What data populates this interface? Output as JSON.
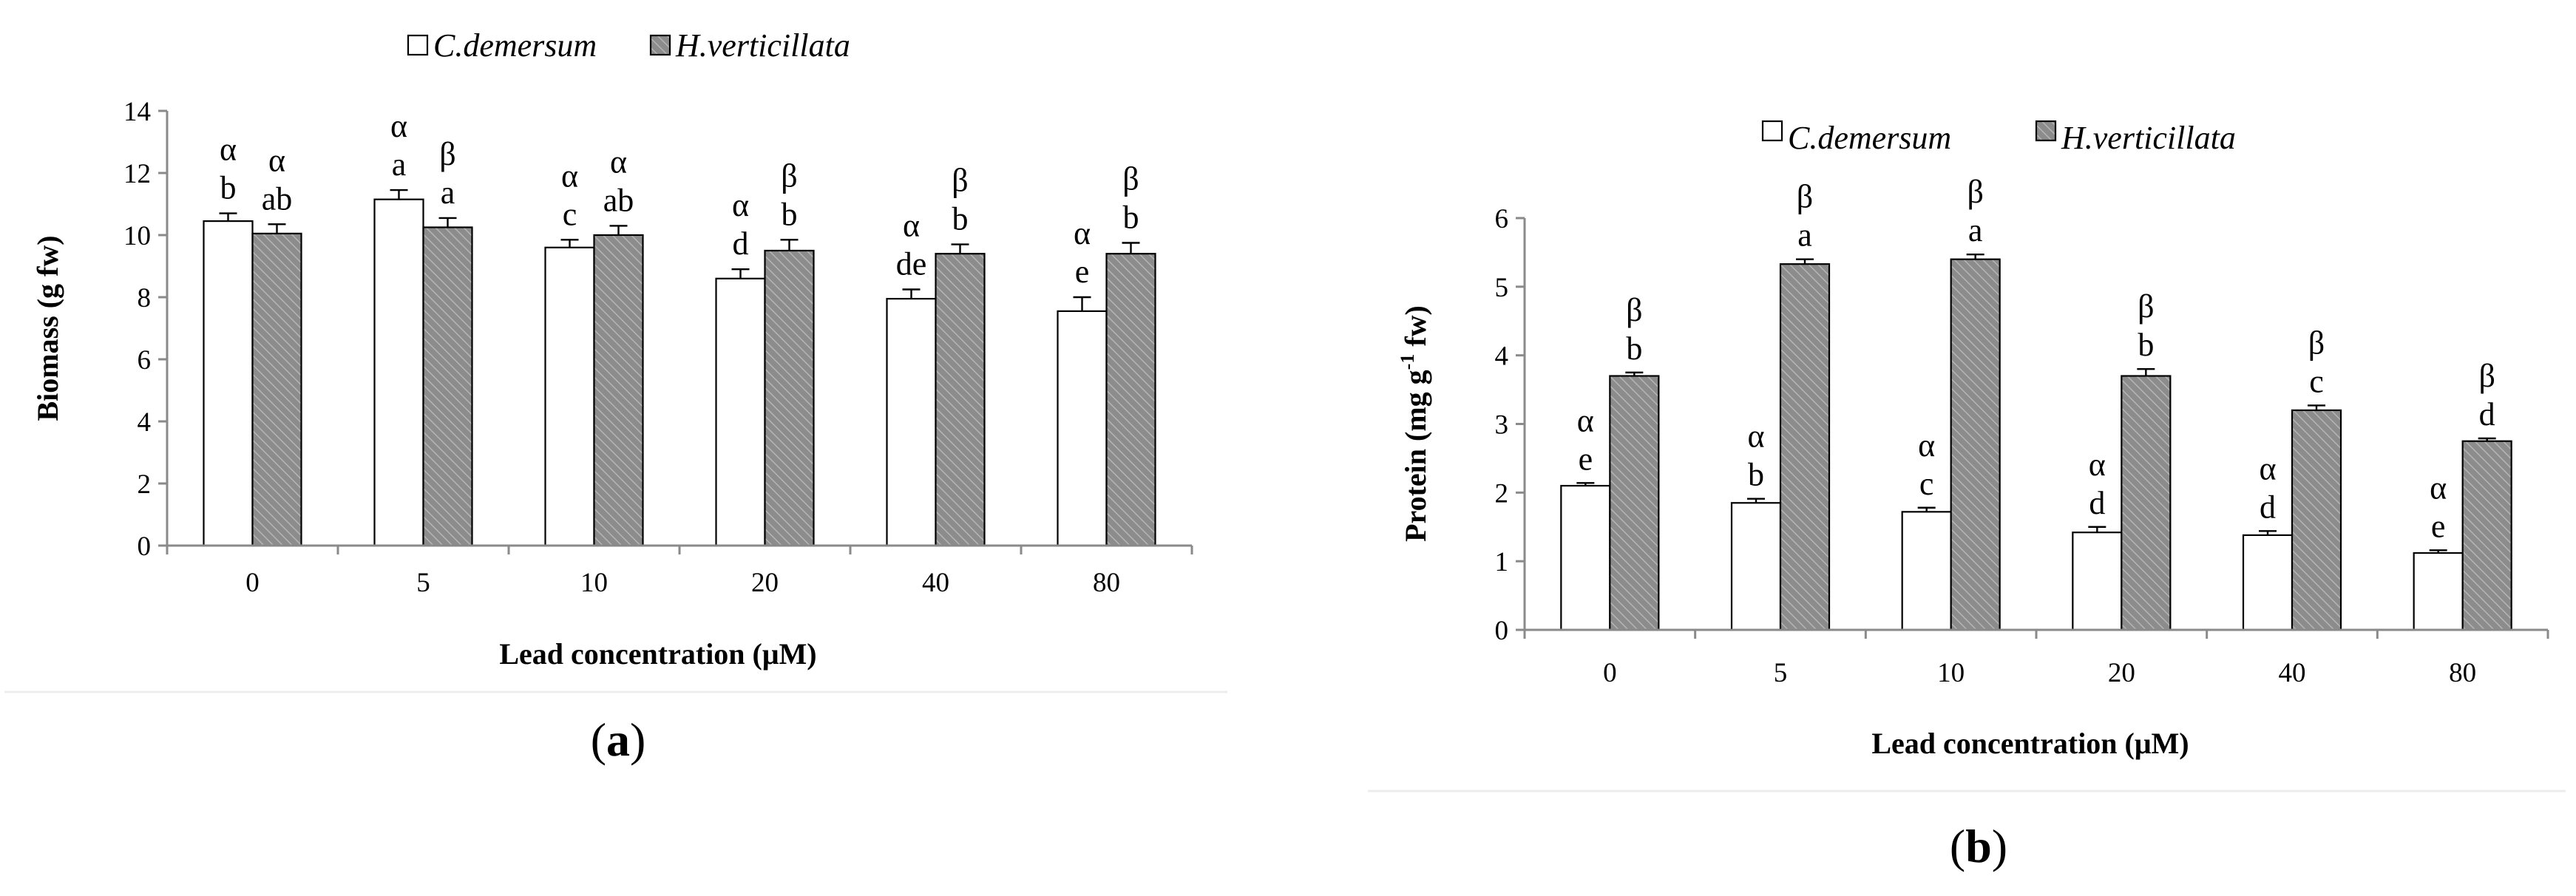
{
  "colors": {
    "series_1_fill": "#ffffff",
    "series_2_fill": "#8c8c8c",
    "series_2_hatch": "#b5b5b5",
    "axis": "#8a8a8a",
    "text": "#000000"
  },
  "chart_data": [
    {
      "type": "bar",
      "panel_label": "a",
      "xlabel": "Lead concentration (μM)",
      "ylabel": "Biomass (g fw)",
      "ylim": [
        0,
        14
      ],
      "yticks": [
        0,
        2,
        4,
        6,
        8,
        10,
        12,
        14
      ],
      "grid": false,
      "legend_position": "top",
      "categories": [
        "0",
        "5",
        "10",
        "20",
        "40",
        "80"
      ],
      "series": [
        {
          "name": "C.demersum",
          "values": [
            10.45,
            11.15,
            9.6,
            8.6,
            7.95,
            7.55
          ],
          "errors": [
            0.25,
            0.3,
            0.25,
            0.3,
            0.3,
            0.45
          ],
          "letters": [
            "b",
            "a",
            "c",
            "d",
            "de",
            "e"
          ],
          "greek": [
            "α",
            "α",
            "α",
            "α",
            "α",
            "α"
          ]
        },
        {
          "name": "H.verticillata",
          "values": [
            10.05,
            10.25,
            10.0,
            9.5,
            9.4,
            9.4
          ],
          "errors": [
            0.3,
            0.3,
            0.3,
            0.35,
            0.3,
            0.35
          ],
          "letters": [
            "ab",
            "a",
            "ab",
            "b",
            "b",
            "b"
          ],
          "greek": [
            "α",
            "β",
            "α",
            "β",
            "β",
            "β"
          ]
        }
      ]
    },
    {
      "type": "bar",
      "panel_label": "b",
      "xlabel": "Lead concentration (μM)",
      "ylabel": "Protein (mg g-1 fw)",
      "ylabel_parts": {
        "before": "Protein (mg g",
        "sup": "-1",
        "after": " fw)"
      },
      "ylim": [
        0,
        6
      ],
      "yticks": [
        0,
        1,
        2,
        3,
        4,
        5,
        6
      ],
      "grid": false,
      "legend_position": "top",
      "categories": [
        "0",
        "5",
        "10",
        "20",
        "40",
        "80"
      ],
      "series": [
        {
          "name": "C.demersum",
          "values": [
            2.1,
            1.85,
            1.72,
            1.42,
            1.38,
            1.12
          ],
          "errors": [
            0.04,
            0.06,
            0.06,
            0.08,
            0.06,
            0.04
          ],
          "letters": [
            "e",
            "b",
            "c",
            "d",
            "d",
            "e"
          ],
          "greek": [
            "α",
            "α",
            "α",
            "α",
            "α",
            "α"
          ]
        },
        {
          "name": "H.verticillata",
          "values": [
            3.7,
            5.33,
            5.4,
            3.7,
            3.2,
            2.75
          ],
          "errors": [
            0.05,
            0.07,
            0.07,
            0.1,
            0.07,
            0.04
          ],
          "letters": [
            "b",
            "a",
            "a",
            "b",
            "c",
            "d"
          ],
          "greek": [
            "β",
            "β",
            "β",
            "β",
            "β",
            "β"
          ]
        }
      ]
    }
  ]
}
